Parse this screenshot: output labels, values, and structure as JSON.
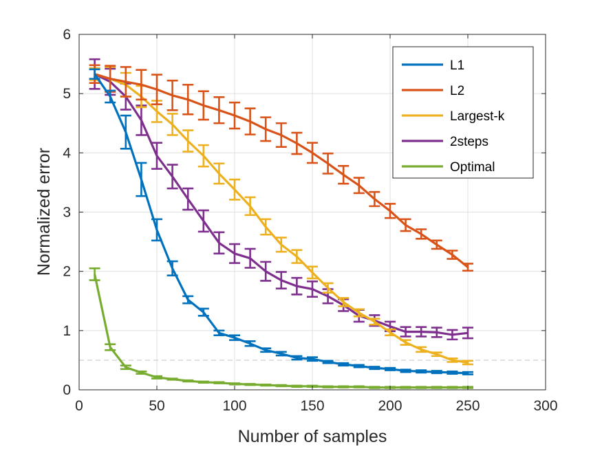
{
  "chart_data": {
    "type": "line",
    "xlabel": "Number of samples",
    "ylabel": "Normalized error",
    "xlim": [
      0,
      300
    ],
    "ylim": [
      0,
      6
    ],
    "xticks": [
      0,
      50,
      100,
      150,
      200,
      250,
      300
    ],
    "yticks": [
      0,
      1,
      2,
      3,
      4,
      5,
      6
    ],
    "xtick_labels": [
      "0",
      "50",
      "100",
      "150",
      "200",
      "250",
      "300"
    ],
    "ytick_labels": [
      "0",
      "1",
      "2",
      "3",
      "4",
      "5",
      "6"
    ],
    "grid": true,
    "legend_position": "top-right",
    "reference_line": {
      "y": 0.5,
      "style": "dashed",
      "color": "#c8c8c8"
    },
    "x": [
      10,
      20,
      30,
      40,
      50,
      60,
      70,
      80,
      90,
      100,
      110,
      120,
      130,
      140,
      150,
      160,
      170,
      180,
      190,
      200,
      210,
      220,
      230,
      240,
      250
    ],
    "series": [
      {
        "name": "L1",
        "color": "#0072BD",
        "values": [
          5.33,
          4.95,
          4.35,
          3.55,
          2.7,
          2.05,
          1.52,
          1.31,
          0.96,
          0.88,
          0.78,
          0.67,
          0.61,
          0.54,
          0.52,
          0.47,
          0.43,
          0.4,
          0.37,
          0.35,
          0.32,
          0.31,
          0.3,
          0.29,
          0.28
        ],
        "errors": [
          0.08,
          0.1,
          0.28,
          0.28,
          0.18,
          0.12,
          0.06,
          0.06,
          0.04,
          0.04,
          0.04,
          0.03,
          0.03,
          0.03,
          0.03,
          0.02,
          0.02,
          0.02,
          0.02,
          0.02,
          0.02,
          0.02,
          0.02,
          0.02,
          0.02
        ]
      },
      {
        "name": "L2",
        "color": "#D95319",
        "values": [
          5.33,
          5.25,
          5.2,
          5.15,
          5.07,
          4.97,
          4.9,
          4.8,
          4.72,
          4.63,
          4.53,
          4.4,
          4.3,
          4.16,
          4.0,
          3.82,
          3.63,
          3.45,
          3.22,
          3.02,
          2.78,
          2.63,
          2.45,
          2.28,
          2.07
        ],
        "errors": [
          0.15,
          0.22,
          0.25,
          0.25,
          0.25,
          0.25,
          0.25,
          0.24,
          0.22,
          0.22,
          0.22,
          0.2,
          0.2,
          0.18,
          0.17,
          0.17,
          0.15,
          0.13,
          0.12,
          0.12,
          0.1,
          0.08,
          0.07,
          0.07,
          0.06
        ]
      },
      {
        "name": "Largest-k",
        "color": "#EDB120",
        "values": [
          5.33,
          5.25,
          5.15,
          4.95,
          4.7,
          4.48,
          4.2,
          3.95,
          3.65,
          3.38,
          3.1,
          2.75,
          2.45,
          2.25,
          1.98,
          1.72,
          1.48,
          1.3,
          1.15,
          0.97,
          0.8,
          0.68,
          0.6,
          0.5,
          0.46
        ],
        "errors": [
          0.1,
          0.2,
          0.2,
          0.18,
          0.18,
          0.18,
          0.18,
          0.18,
          0.17,
          0.17,
          0.15,
          0.13,
          0.12,
          0.11,
          0.1,
          0.08,
          0.07,
          0.06,
          0.05,
          0.05,
          0.04,
          0.04,
          0.03,
          0.03,
          0.03
        ]
      },
      {
        "name": "2steps",
        "color": "#7E2F8E",
        "values": [
          5.33,
          5.2,
          4.95,
          4.55,
          3.95,
          3.6,
          3.22,
          2.85,
          2.48,
          2.3,
          2.22,
          2.0,
          1.85,
          1.75,
          1.7,
          1.58,
          1.43,
          1.25,
          1.17,
          1.07,
          0.98,
          0.98,
          0.97,
          0.93,
          0.96
        ],
        "errors": [
          0.25,
          0.22,
          0.22,
          0.25,
          0.22,
          0.2,
          0.18,
          0.18,
          0.18,
          0.16,
          0.16,
          0.16,
          0.14,
          0.14,
          0.13,
          0.12,
          0.1,
          0.1,
          0.09,
          0.08,
          0.08,
          0.08,
          0.08,
          0.08,
          0.09
        ]
      },
      {
        "name": "Optimal",
        "color": "#77AC30",
        "values": [
          1.95,
          0.72,
          0.38,
          0.29,
          0.21,
          0.18,
          0.15,
          0.13,
          0.12,
          0.1,
          0.09,
          0.08,
          0.07,
          0.06,
          0.06,
          0.05,
          0.05,
          0.05,
          0.04,
          0.04,
          0.04,
          0.04,
          0.04,
          0.04,
          0.04
        ],
        "errors": [
          0.1,
          0.05,
          0.03,
          0.02,
          0.02,
          0.01,
          0.01,
          0.01,
          0.01,
          0.01,
          0.01,
          0.01,
          0.01,
          0.01,
          0.01,
          0.01,
          0.01,
          0.01,
          0.01,
          0.01,
          0.01,
          0.01,
          0.01,
          0.01,
          0.01
        ]
      }
    ]
  }
}
